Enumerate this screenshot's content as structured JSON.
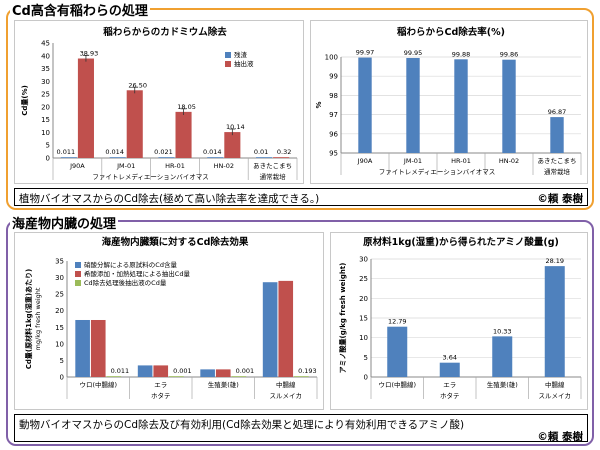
{
  "sections": {
    "top_title": "Cd高含有稲わらの処理",
    "bottom_title": "海産物内臓の処理"
  },
  "captions": {
    "top": "植物バイオマスからのCd除去(極めて高い除去率を達成できる。)",
    "top_author": "©頼 泰樹",
    "bottom": "動物バイオマスからのCd除去及び有効利用(Cd除去効果と処理により有効利用できるアミノ酸)",
    "bottom_author": "©頼 泰樹"
  },
  "colors": {
    "blue": "#4f81bd",
    "red": "#c0504d",
    "green": "#9bbb59",
    "top_border": "#f0a030",
    "bottom_border": "#8060a8"
  },
  "chart_data": [
    {
      "type": "bar",
      "title": "稲わらからのカドミウム除去",
      "ylabel": "Cd量(%)",
      "ylim": [
        0,
        45
      ],
      "yticks": [
        0,
        5,
        10,
        15,
        20,
        25,
        30,
        35,
        40,
        45
      ],
      "categories": [
        "J90A",
        "JM-01",
        "HR-01",
        "HN-02",
        "あきたこまち"
      ],
      "group_labels": [
        "ファイトレメディエーションバイオマス",
        "通常栽培"
      ],
      "series": [
        {
          "name": "残渣",
          "values": [
            0.011,
            0.014,
            0.021,
            0.014,
            0.01
          ],
          "labels": [
            "0.011",
            "0.014",
            "0.021",
            "0.014",
            "0.01"
          ]
        },
        {
          "name": "抽出液",
          "values": [
            38.93,
            26.5,
            18.05,
            10.14,
            0.32
          ],
          "labels": [
            "38.93",
            "26.50",
            "18.05",
            "10.14",
            "0.32"
          ]
        }
      ],
      "legend": "top-right"
    },
    {
      "type": "bar",
      "title": "稲わらからCd除去率(%)",
      "ylabel": "%",
      "ylim": [
        95,
        100
      ],
      "yticks": [
        95,
        96,
        97,
        98,
        99,
        100
      ],
      "categories": [
        "J90A",
        "JM-01",
        "HR-01",
        "HN-02",
        "あきたこまち"
      ],
      "group_labels": [
        "ファイトレメディエーションバイオマス",
        "通常栽培"
      ],
      "series": [
        {
          "values": [
            99.97,
            99.95,
            99.88,
            99.86,
            96.87
          ],
          "labels": [
            "99.97",
            "99.95",
            "99.88",
            "99.86",
            "96.87"
          ]
        }
      ]
    },
    {
      "type": "bar",
      "title": "海産物内臓類に対するCd除去効果",
      "ylabel": "Cd量(原材料1kg(湿重)あたり)",
      "ylabel2": "mg/kg fresh weight",
      "ylim": [
        0,
        35
      ],
      "yticks": [
        0,
        5,
        10,
        15,
        20,
        25,
        30,
        35
      ],
      "categories": [
        "ウロ(中腸線)",
        "エラ",
        "生殖巣(雄)",
        "中腸線"
      ],
      "group_labels": [
        "ホタテ",
        "スルメイカ"
      ],
      "series": [
        {
          "name": "硝酸分解による原試料のCd含量",
          "values": [
            17.2,
            3.5,
            2.3,
            28.6
          ]
        },
        {
          "name": "希酸添加・加熱処理による抽出Cd量",
          "values": [
            17.2,
            3.5,
            2.3,
            29.0
          ]
        },
        {
          "name": "Cd除去処理後抽出液のCd量",
          "values": [
            0.011,
            0.001,
            0.001,
            0.193
          ],
          "labels": [
            "0.011",
            "0.001",
            "0.001",
            "0.193"
          ]
        }
      ],
      "legend": "top-left"
    },
    {
      "type": "bar",
      "title": "原材料1kg(湿重)から得られたアミノ酸量(g)",
      "ylabel": "アミノ酸量(g/kg fresh weight)",
      "ylim": [
        0,
        30
      ],
      "yticks": [
        0,
        5,
        10,
        15,
        20,
        25,
        30
      ],
      "categories": [
        "ウロ(中腸線)",
        "エラ",
        "生殖巣(雄)",
        "中腸線"
      ],
      "group_labels": [
        "ホタテ",
        "スルメイカ"
      ],
      "series": [
        {
          "values": [
            12.79,
            3.64,
            10.33,
            28.19
          ],
          "labels": [
            "12.79",
            "3.64",
            "10.33",
            "28.19"
          ]
        }
      ]
    }
  ]
}
